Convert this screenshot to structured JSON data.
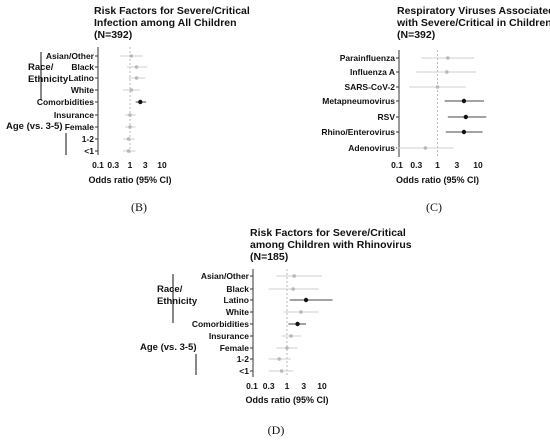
{
  "chart_data": [
    {
      "type": "forest",
      "panel": "(B)",
      "title": [
        "Risk Factors for  Severe/Critical",
        "Infection among All  Children",
        "(N=392)"
      ],
      "xlabel": "Odds ratio (95% CI)",
      "xscale": "log",
      "xticks": [
        "0.1",
        "0.3",
        "1",
        "3",
        "10"
      ],
      "reference_line": 1,
      "group_labels": [
        {
          "lines": [
            "Race/",
            "Ethnicity"
          ],
          "span": [
            "Asian/Other",
            "White"
          ]
        },
        {
          "lines": [
            "Age (vs. 3-5)"
          ],
          "span": [
            "1-2",
            "<1"
          ]
        }
      ],
      "categories": [
        "Asian/Other",
        "Black",
        "Latino",
        "White",
        "Comorbidities",
        "Insurance",
        "Female",
        "1-2",
        "<1"
      ],
      "estimates": [
        1.1,
        1.6,
        1.6,
        1.1,
        2.1,
        1.0,
        1.0,
        0.9,
        0.9
      ],
      "ci_low": [
        0.5,
        0.8,
        0.9,
        0.6,
        1.5,
        0.7,
        0.7,
        0.6,
        0.6
      ],
      "ci_high": [
        2.5,
        3.5,
        3.0,
        2.0,
        3.2,
        1.5,
        1.5,
        1.4,
        1.5
      ],
      "significant": [
        false,
        false,
        false,
        false,
        true,
        false,
        false,
        false,
        false
      ]
    },
    {
      "type": "forest",
      "panel": "(C)",
      "title": [
        "Respiratory Viruses Associated",
        "with Severe/Critical in Children",
        "(N=392)"
      ],
      "xlabel": "Odds ratio (95% CI)",
      "xscale": "log",
      "xticks": [
        "0.1",
        "0.3",
        "1",
        "3",
        "10"
      ],
      "reference_line": 1,
      "group_labels": [],
      "categories": [
        "Parainfluenza",
        "Influenza A",
        "SARS-CoV-2",
        "Metapneumovirus",
        "RSV",
        "Rhino/Enterovirus",
        "Adenovirus"
      ],
      "estimates": [
        1.8,
        1.7,
        1.0,
        4.5,
        5.0,
        4.5,
        0.5
      ],
      "ci_low": [
        0.4,
        0.3,
        0.2,
        1.5,
        1.8,
        1.6,
        0.1
      ],
      "ci_high": [
        8.0,
        9.0,
        5.0,
        14.0,
        16.0,
        13.0,
        2.5
      ],
      "significant": [
        false,
        false,
        false,
        true,
        true,
        true,
        false
      ]
    },
    {
      "type": "forest",
      "panel": "(D)",
      "title": [
        "Risk Factors for  Severe/Critical",
        "among Children with Rhinovirus",
        "(N=185)"
      ],
      "xlabel": "Odds ratio (95% CI)",
      "xscale": "log",
      "xticks": [
        "0.1",
        "0.3",
        "1",
        "3",
        "10"
      ],
      "reference_line": 1,
      "group_labels": [
        {
          "lines": [
            "Race/",
            "Ethnicity"
          ],
          "span": [
            "Asian/Other",
            "White"
          ]
        },
        {
          "lines": [
            "Age (vs. 3-5)"
          ],
          "span": [
            "1-2",
            "<1"
          ]
        }
      ],
      "categories": [
        "Asian/Other",
        "Black",
        "Latino",
        "White",
        "Comorbidities",
        "Insurance",
        "Female",
        "1-2",
        "<1"
      ],
      "estimates": [
        1.6,
        1.5,
        3.5,
        2.5,
        2.0,
        1.3,
        1.0,
        0.6,
        0.7
      ],
      "ci_low": [
        0.5,
        0.3,
        1.2,
        0.8,
        1.1,
        0.7,
        0.5,
        0.3,
        0.3
      ],
      "ci_high": [
        10.0,
        8.0,
        20.0,
        8.0,
        3.5,
        2.5,
        2.0,
        1.3,
        1.5
      ],
      "significant": [
        false,
        false,
        true,
        false,
        true,
        false,
        false,
        false,
        false
      ]
    }
  ]
}
